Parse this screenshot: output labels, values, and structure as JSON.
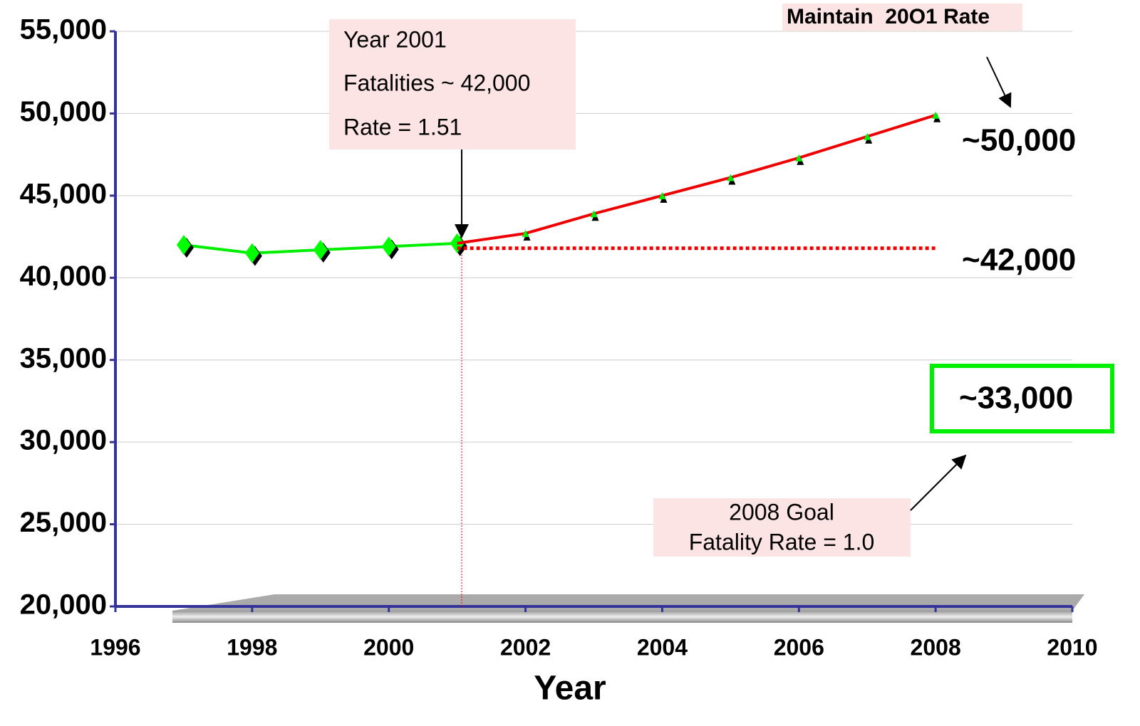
{
  "chart_data": {
    "type": "line",
    "x_label": "Year",
    "xlim": [
      1996,
      2010
    ],
    "xticks": [
      1996,
      1998,
      2000,
      2002,
      2004,
      2006,
      2008,
      2010
    ],
    "ylim": [
      20000,
      55000
    ],
    "yticks": [
      {
        "value": 20000,
        "label": "20,000"
      },
      {
        "value": 25000,
        "label": "25,000"
      },
      {
        "value": 30000,
        "label": "30,000"
      },
      {
        "value": 35000,
        "label": "35,000"
      },
      {
        "value": 40000,
        "label": "40,000"
      },
      {
        "value": 45000,
        "label": "45,000"
      },
      {
        "value": 50000,
        "label": "50,000"
      },
      {
        "value": 55000,
        "label": "55,000"
      }
    ],
    "grid": true,
    "series": [
      {
        "color": "#00ee00",
        "marker": "diamond",
        "style": "solid",
        "x": [
          1997,
          1998,
          1999,
          2000,
          2001
        ],
        "values": [
          42000,
          41500,
          41700,
          41900,
          42100
        ]
      },
      {
        "color": "#ee0000",
        "marker": "triangle",
        "style": "solid",
        "x": [
          2001,
          2002,
          2003,
          2004,
          2005,
          2006,
          2007,
          2008
        ],
        "values": [
          42100,
          42700,
          43900,
          45000,
          46100,
          47300,
          48600,
          49900
        ]
      },
      {
        "color": "#ee0000",
        "marker": "none",
        "style": "dotted",
        "x": [
          2001,
          2008
        ],
        "values": [
          41800,
          41800
        ]
      }
    ],
    "annotations": [
      "Year 2001",
      "Fatalities ~ 42,000",
      "Rate = 1.51",
      "Maintain  20O1 Rate",
      "~50,000",
      "~42,000",
      "~33,000",
      "2008 Goal",
      "Fatality Rate = 1.0"
    ]
  }
}
